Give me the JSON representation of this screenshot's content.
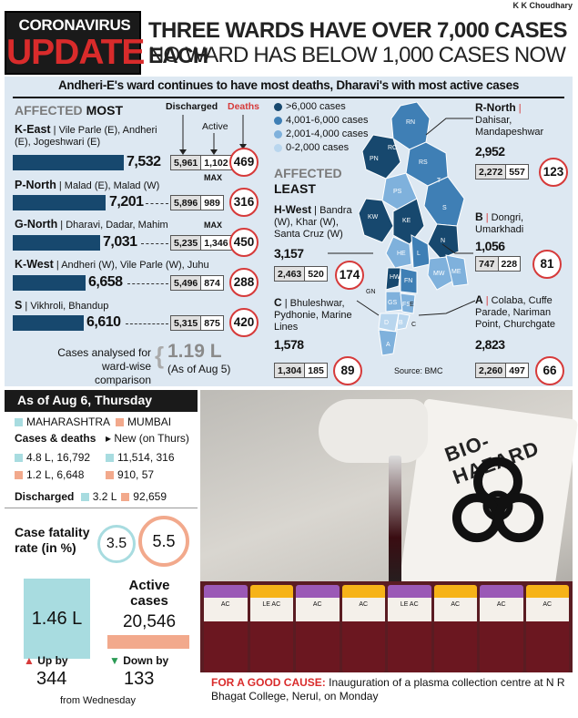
{
  "byline": "K K Choudhary",
  "header": {
    "l1": "CORONAVIRUS",
    "l2": "UPDATE",
    "headline1": "THREE WARDS HAVE OVER 7,000 CASES EACH",
    "headline2": "NO WARD HAS BELOW 1,000 CASES NOW"
  },
  "subhead": "Andheri-E's ward continues to have most deaths, Dharavi's with most active cases",
  "most": {
    "label_affected": "AFFECTED",
    "label_most": "MOST",
    "col_discharged": "Discharged",
    "col_active": "Active",
    "col_deaths": "Deaths",
    "max": "MAX",
    "wards": [
      {
        "code": "K-East",
        "areas": " | Vile Parle (E), Andheri (E), Jogeshwari (E)",
        "total": "7,532",
        "discharged": "5,961",
        "active": "1,102",
        "deaths": "469"
      },
      {
        "code": "P-North",
        "areas": " | Malad (E), Malad (W)",
        "total": "7,201",
        "discharged": "5,896",
        "active": "989",
        "deaths": "316"
      },
      {
        "code": "G-North",
        "areas": " | Dharavi, Dadar, Mahim",
        "total": "7,031",
        "discharged": "5,235",
        "active": "1,346",
        "deaths": "450"
      },
      {
        "code": "K-West",
        "areas": " | Andheri (W), Vile Parle (W), Juhu",
        "total": "6,658",
        "discharged": "5,496",
        "active": "874",
        "deaths": "288"
      },
      {
        "code": "S",
        "areas": " | Vikhroli, Bhandup",
        "total": "6,610",
        "discharged": "5,315",
        "active": "875",
        "deaths": "420"
      }
    ]
  },
  "analysed": {
    "text1": "Cases analysed for",
    "text2": "ward-wise comparison",
    "value": "1.19 L",
    "note": "(As of Aug 5)"
  },
  "legend": [
    {
      "label": ">6,000 cases",
      "color": "#17486e"
    },
    {
      "label": "4,001-6,000 cases",
      "color": "#3f7fb5"
    },
    {
      "label": "2,001-4,000 cases",
      "color": "#7fb1dc"
    },
    {
      "label": "0-2,000 cases",
      "color": "#b9d6ee"
    }
  ],
  "least": {
    "label_affected": "AFFECTED",
    "label_least": "LEAST",
    "hwest": {
      "code": "H-West",
      "areas": " | Bandra (W), Khar (W), Santa Cruz (W)",
      "total": "3,157",
      "discharged": "2,463",
      "active": "520",
      "deaths": "174"
    },
    "c": {
      "code": "C",
      "areas": " | Bhuleshwar, Pydhonie, Marine Lines",
      "total": "1,578",
      "discharged": "1,304",
      "active": "185",
      "deaths": "89"
    }
  },
  "right_wards": [
    {
      "code": "R-North",
      "areas": "Dahisar, Mandapeshwar",
      "total": "2,952",
      "discharged": "2,272",
      "active": "557",
      "deaths": "123"
    },
    {
      "code": "B",
      "areas": "Dongri, Umarkhadi",
      "total": "1,056",
      "discharged": "747",
      "active": "228",
      "deaths": "81"
    },
    {
      "code": "A",
      "areas": "Colaba, Cuffe Parade, Nariman Point, Churchgate",
      "total": "2,823",
      "discharged": "2,260",
      "active": "497",
      "deaths": "66"
    }
  ],
  "map_labels": [
    "RC",
    "RN",
    "RS",
    "PN",
    "PS",
    "T",
    "KW",
    "KE",
    "S",
    "N",
    "HE",
    "L",
    "HW",
    "MW",
    "ME",
    "GN",
    "FN",
    "GS",
    "FS",
    "D",
    "B",
    "C",
    "E",
    "A"
  ],
  "source": "Source: BMC",
  "state": {
    "date": "As of Aug 6, Thursday",
    "legend_mh": "MAHARASHTRA",
    "legend_mum": "MUMBAI",
    "mh_color": "#a8dce0",
    "mum_color": "#f2a98c",
    "cases_label": "Cases & deaths",
    "new_label": "New (on Thurs)",
    "mh_cases": "4.8 L, 16,792",
    "mh_new": "11,514, 316",
    "mum_cases": "1.2 L, 6,648",
    "mum_new": "910, 57",
    "discharged_label": "Discharged",
    "mh_discharged": "3.2 L",
    "mum_discharged": "92,659",
    "cfr_label1": "Case fatality",
    "cfr_label2": "rate (in %)",
    "cfr_mh": "3.5",
    "cfr_mum": "5.5",
    "active_label1": "Active",
    "active_label2": "cases",
    "active_mh": "1.46 L",
    "active_mum": "20,546",
    "up_label": "Up by",
    "up_value": "344",
    "down_label": "Down by",
    "down_value": "133",
    "from": "from Wednesday"
  },
  "photo": {
    "sign_text": "BIO-HAZARD",
    "tube_labels": [
      "AC",
      "LE AC",
      "AC",
      "AC",
      "LE AC",
      "AC",
      "AC",
      "AC"
    ]
  },
  "caption": {
    "lead": "FOR A GOOD CAUSE:",
    "text": " Inauguration of a plasma collection centre at N R Bhagat College, Nerul, on Monday"
  }
}
